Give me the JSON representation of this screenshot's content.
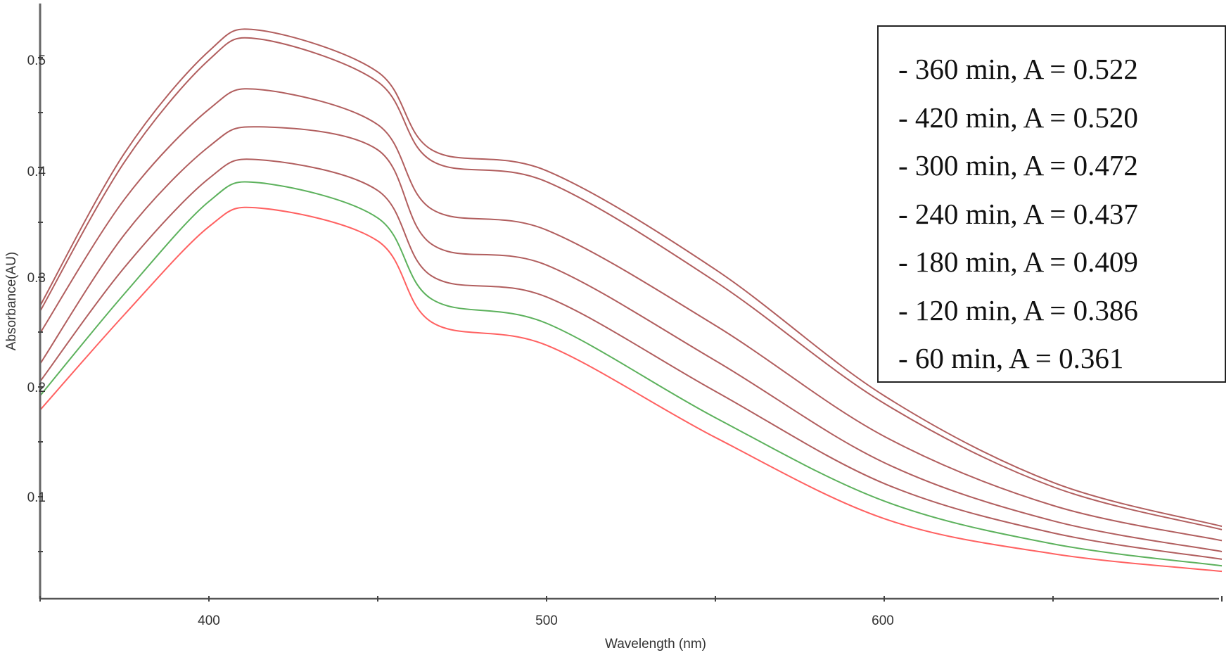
{
  "chart_data": {
    "type": "line",
    "title": "",
    "xlabel": "Wavelength (nm)",
    "ylabel": "Absorbance(AU)",
    "xlim": [
      350,
      700
    ],
    "ylim": [
      0.007,
      0.549
    ],
    "grid": false,
    "legend_position": "upper right",
    "x_ticks": [
      {
        "value": 350,
        "label": ""
      },
      {
        "value": 400,
        "label": "400"
      },
      {
        "value": 450,
        "label": ""
      },
      {
        "value": 500,
        "label": "500"
      },
      {
        "value": 550,
        "label": ""
      },
      {
        "value": 600,
        "label": "600"
      },
      {
        "value": 650,
        "label": ""
      },
      {
        "value": 700,
        "label": ""
      }
    ],
    "y_ticks": [
      {
        "value": 0.05,
        "label": ""
      },
      {
        "value": 0.1,
        "label": "0.1"
      },
      {
        "value": 0.15,
        "label": ""
      },
      {
        "value": 0.2,
        "label": "0.2"
      },
      {
        "value": 0.25,
        "label": ""
      },
      {
        "value": 0.3,
        "label": "0.3"
      },
      {
        "value": 0.35,
        "label": ""
      },
      {
        "value": 0.4,
        "label": "0.4"
      },
      {
        "value": 0.45,
        "label": ""
      },
      {
        "value": 0.5,
        "label": "0.5"
      }
    ],
    "x": [
      350,
      375,
      400,
      415,
      450,
      466,
      500,
      550,
      600,
      650,
      700
    ],
    "series": [
      {
        "name": "360 min",
        "legend": "- 360 min, A = 0.522",
        "peak_absorbance": 0.522,
        "color": "#a84c4c",
        "values": [
          0.274,
          0.413,
          0.506,
          0.525,
          0.487,
          0.416,
          0.397,
          0.307,
          0.192,
          0.113,
          0.073
        ]
      },
      {
        "name": "420 min",
        "legend": "- 420 min, A = 0.520",
        "peak_absorbance": 0.52,
        "color": "#a84c4c",
        "values": [
          0.269,
          0.405,
          0.498,
          0.517,
          0.478,
          0.406,
          0.387,
          0.296,
          0.185,
          0.109,
          0.07
        ]
      },
      {
        "name": "300 min",
        "legend": "- 300 min, A = 0.472",
        "peak_absorbance": 0.472,
        "color": "#a84c4c",
        "values": [
          0.249,
          0.371,
          0.453,
          0.471,
          0.439,
          0.362,
          0.343,
          0.256,
          0.155,
          0.092,
          0.06
        ]
      },
      {
        "name": "240 min",
        "legend": "- 240 min, A = 0.437",
        "peak_absorbance": 0.437,
        "color": "#a84c4c",
        "values": [
          0.221,
          0.339,
          0.419,
          0.437,
          0.416,
          0.33,
          0.311,
          0.224,
          0.131,
          0.078,
          0.05
        ]
      },
      {
        "name": "180 min",
        "legend": "- 180 min, A = 0.409",
        "peak_absorbance": 0.409,
        "color": "#a84c4c",
        "values": [
          0.205,
          0.309,
          0.39,
          0.407,
          0.379,
          0.301,
          0.282,
          0.196,
          0.112,
          0.067,
          0.043
        ]
      },
      {
        "name": "120 min",
        "legend": "- 120 min, A = 0.386",
        "peak_absorbance": 0.386,
        "color": "#4aa84a",
        "values": [
          0.192,
          0.285,
          0.369,
          0.386,
          0.354,
          0.28,
          0.258,
          0.172,
          0.096,
          0.057,
          0.037
        ]
      },
      {
        "name": "60 min",
        "legend": "- 60 min, A = 0.361",
        "peak_absorbance": 0.361,
        "color": "#ff5050",
        "values": [
          0.179,
          0.266,
          0.346,
          0.363,
          0.333,
          0.259,
          0.238,
          0.154,
          0.08,
          0.048,
          0.032
        ]
      }
    ]
  },
  "axes": {
    "x_label": "Wavelength (nm)",
    "y_label": "Absorbance(AU)",
    "x_tick_labels": {
      "t400": "400",
      "t500": "500",
      "t600": "600"
    },
    "y_tick_labels": {
      "t01": "0.1",
      "t02": "0.2",
      "t03": "0.3",
      "t04": "0.4",
      "t05": "0.5"
    }
  },
  "legend": {
    "items": [
      "- 360 min, A = 0.522",
      "- 420 min, A = 0.520",
      "- 300 min, A = 0.472",
      "- 240 min, A = 0.437",
      "- 180 min, A = 0.409",
      "- 120 min, A = 0.386",
      "- 60 min, A = 0.361"
    ]
  }
}
